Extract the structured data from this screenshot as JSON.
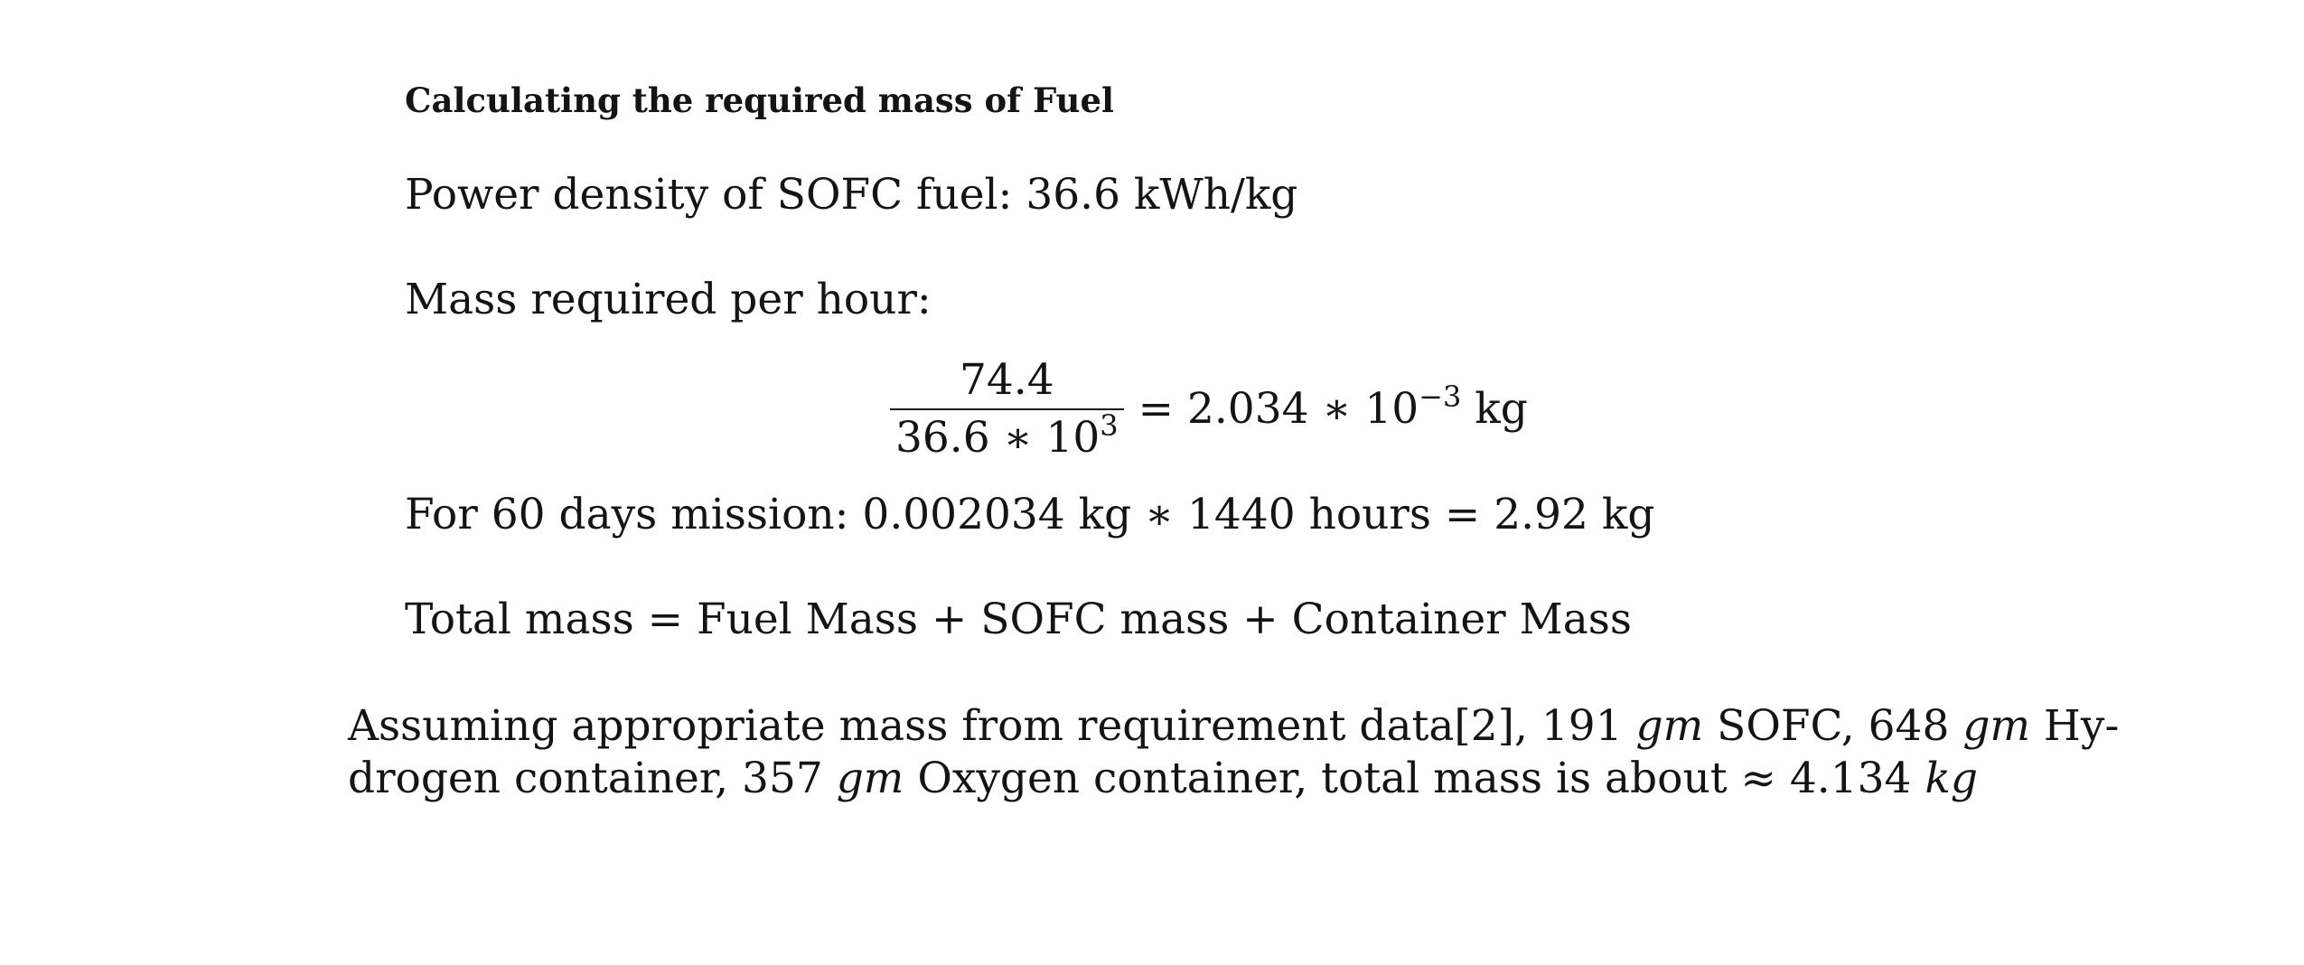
{
  "heading": "Calculating the required mass of Fuel",
  "power_density": {
    "label": "Power density of SOFC fuel:",
    "value": "36.6 kWh/kg"
  },
  "mass_per_hour": {
    "label": "Mass required per hour:"
  },
  "equation": {
    "numerator": "74.4",
    "denominator_base": "36.6 ∗ 10",
    "denominator_exp": "3",
    "equals_text": "= 2.034 ∗ 10",
    "result_exp": "−3",
    "result_unit": "kg"
  },
  "mission": {
    "text": "For 60 days mission: 0.002034 kg ∗ 1440 hours = 2.92 kg"
  },
  "total": {
    "text": "Total mass = Fuel Mass + SOFC mass + Container Mass"
  },
  "conclusion": {
    "part1": "Assuming appropriate mass from requirement data[2], 191 ",
    "unit_gm": "gm",
    "part2": " SOFC, 648 ",
    "part3": " Hy-",
    "part4": "drogen container, 357 ",
    "part5": " Oxygen container, total mass is about ≈ 4.134 ",
    "unit_kg": "kg"
  }
}
